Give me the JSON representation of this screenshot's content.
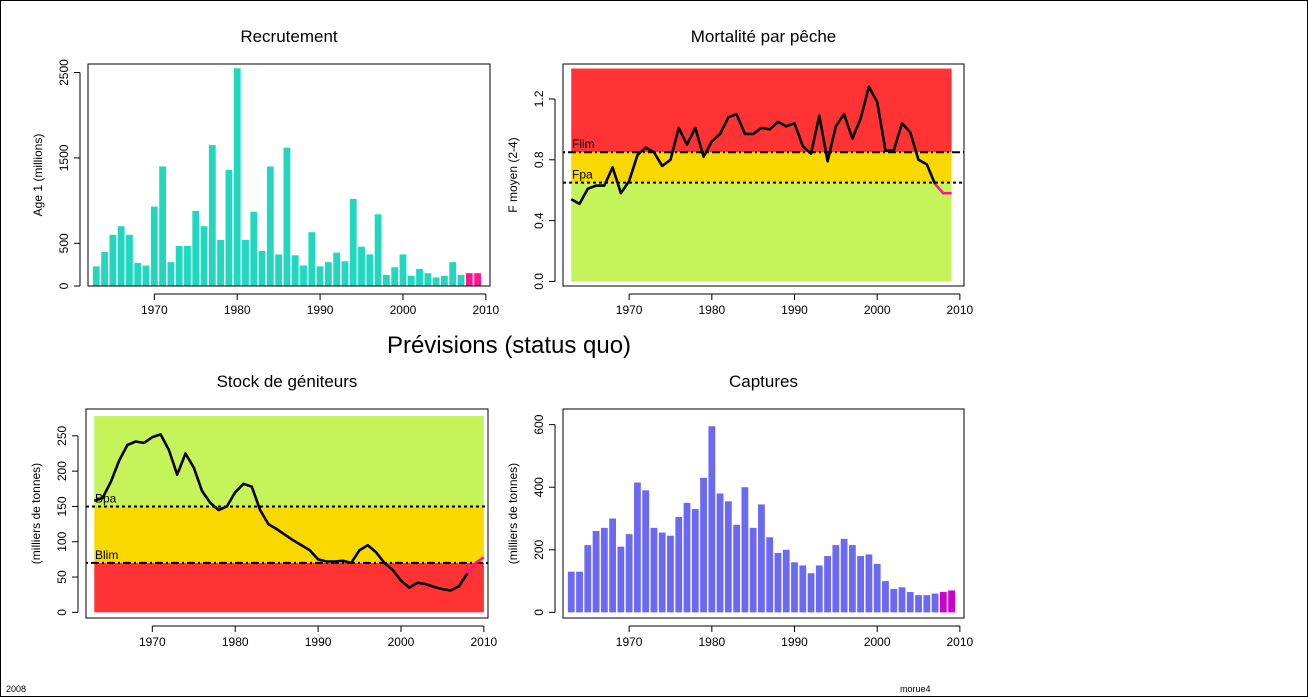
{
  "page": {
    "main_title": "Prévisions (status quo)",
    "footer_left": "2008",
    "footer_right": "morue4"
  },
  "colors": {
    "recruit_bar": "#20D8C0",
    "forecast": "#FF1493",
    "catch_bar": "#6B68F4",
    "catch_forecast_bar": "#CC00CC",
    "zone_red": "#FF3333",
    "zone_yellow": "#F9D800",
    "zone_green": "#C4F45A"
  },
  "chart_data": [
    {
      "id": "recruitment",
      "type": "bar",
      "title": "Recrutement",
      "xlabel": "",
      "ylabel": "Age 1 (millions)",
      "xlim": [
        1962,
        2010.5
      ],
      "ylim": [
        0,
        2600
      ],
      "xticks": [
        1970,
        1980,
        1990,
        2000,
        2010
      ],
      "yticks": [
        0,
        500,
        1500,
        2500
      ],
      "x": [
        1963,
        1964,
        1965,
        1966,
        1967,
        1968,
        1969,
        1970,
        1971,
        1972,
        1973,
        1974,
        1975,
        1976,
        1977,
        1978,
        1979,
        1980,
        1981,
        1982,
        1983,
        1984,
        1985,
        1986,
        1987,
        1988,
        1989,
        1990,
        1991,
        1992,
        1993,
        1994,
        1995,
        1996,
        1997,
        1998,
        1999,
        2000,
        2001,
        2002,
        2003,
        2004,
        2005,
        2006,
        2007,
        2008,
        2009
      ],
      "values": [
        230,
        400,
        600,
        700,
        600,
        270,
        240,
        930,
        1400,
        280,
        470,
        470,
        880,
        700,
        1650,
        540,
        1360,
        2550,
        540,
        870,
        410,
        1400,
        370,
        1620,
        360,
        240,
        630,
        230,
        280,
        390,
        290,
        1020,
        460,
        370,
        840,
        130,
        220,
        370,
        120,
        200,
        150,
        100,
        120,
        280,
        130,
        150,
        150
      ],
      "forecast_from": 2008
    },
    {
      "id": "fishing-mortality",
      "type": "line",
      "title": "Mortalité par pêche",
      "xlabel": "",
      "ylabel": "F moyen (2-4)",
      "xlim": [
        1962,
        2010.5
      ],
      "ylim": [
        -0.03,
        1.43
      ],
      "xticks": [
        1970,
        1980,
        1990,
        2000,
        2010
      ],
      "yticks": [
        0.0,
        0.4,
        0.8,
        1.2
      ],
      "ytick_labels": [
        "0.0",
        "0.4",
        "0.8",
        "1.2"
      ],
      "zones": [
        {
          "from": 0.0,
          "to": 0.65,
          "color": "zone_green"
        },
        {
          "from": 0.65,
          "to": 0.85,
          "color": "zone_yellow"
        },
        {
          "from": 0.85,
          "to": 1.4,
          "color": "zone_red"
        }
      ],
      "zones_x": [
        1963,
        2009
      ],
      "reference_lines": [
        {
          "label": "Flim",
          "value": 0.85,
          "style": "dotdash"
        },
        {
          "label": "Fpa",
          "value": 0.65,
          "style": "dotted"
        }
      ],
      "x": [
        1963,
        1964,
        1965,
        1966,
        1967,
        1968,
        1969,
        1970,
        1971,
        1972,
        1973,
        1974,
        1975,
        1976,
        1977,
        1978,
        1979,
        1980,
        1981,
        1982,
        1983,
        1984,
        1985,
        1986,
        1987,
        1988,
        1989,
        1990,
        1991,
        1992,
        1993,
        1994,
        1995,
        1996,
        1997,
        1998,
        1999,
        2000,
        2001,
        2002,
        2003,
        2004,
        2005,
        2006,
        2007,
        2008,
        2009
      ],
      "values": [
        0.54,
        0.51,
        0.61,
        0.63,
        0.63,
        0.75,
        0.58,
        0.66,
        0.83,
        0.88,
        0.85,
        0.76,
        0.8,
        1.01,
        0.9,
        1.01,
        0.82,
        0.92,
        0.97,
        1.08,
        1.1,
        0.97,
        0.97,
        1.01,
        1.0,
        1.05,
        1.02,
        1.04,
        0.89,
        0.84,
        1.09,
        0.79,
        1.02,
        1.1,
        0.94,
        1.07,
        1.28,
        1.18,
        0.86,
        0.86,
        1.04,
        0.98,
        0.8,
        0.77,
        0.64,
        0.58,
        0.58
      ],
      "forecast_from": 2007
    },
    {
      "id": "spawning-stock",
      "type": "line",
      "title": "Stock de géniteurs",
      "xlabel": "",
      "ylabel": "(milliers de tonnes)",
      "xlim": [
        1962,
        2010.5
      ],
      "ylim": [
        -8,
        288
      ],
      "xticks": [
        1970,
        1980,
        1990,
        2000,
        2010
      ],
      "yticks": [
        0,
        50,
        100,
        150,
        200,
        250
      ],
      "zones": [
        {
          "from": 0,
          "to": 70,
          "color": "zone_red"
        },
        {
          "from": 70,
          "to": 150,
          "color": "zone_yellow"
        },
        {
          "from": 150,
          "to": 278,
          "color": "zone_green"
        }
      ],
      "zones_x": [
        1963,
        2010
      ],
      "reference_lines": [
        {
          "label": "Bpa",
          "value": 150,
          "style": "dotted"
        },
        {
          "label": "Blim",
          "value": 70,
          "style": "dotdash"
        }
      ],
      "x": [
        1963,
        1964,
        1965,
        1966,
        1967,
        1968,
        1969,
        1970,
        1971,
        1972,
        1973,
        1974,
        1975,
        1976,
        1977,
        1978,
        1979,
        1980,
        1981,
        1982,
        1983,
        1984,
        1985,
        1986,
        1987,
        1988,
        1989,
        1990,
        1991,
        1992,
        1993,
        1994,
        1995,
        1996,
        1997,
        1998,
        1999,
        2000,
        2001,
        2002,
        2003,
        2004,
        2005,
        2006,
        2007,
        2008,
        2009,
        2010
      ],
      "values": [
        158,
        162,
        185,
        215,
        237,
        242,
        240,
        248,
        252,
        230,
        195,
        225,
        205,
        172,
        155,
        145,
        150,
        170,
        182,
        178,
        145,
        125,
        118,
        110,
        102,
        95,
        88,
        75,
        72,
        72,
        73,
        70,
        88,
        95,
        85,
        70,
        60,
        45,
        35,
        42,
        40,
        36,
        33,
        31,
        37,
        55,
        70,
        78
      ],
      "forecast_from": 2008
    },
    {
      "id": "catches",
      "type": "bar",
      "title": "Captures",
      "xlabel": "",
      "ylabel": "(milliers de tonnes)",
      "xlim": [
        1962,
        2010.5
      ],
      "ylim": [
        -18,
        650
      ],
      "xticks": [
        1970,
        1980,
        1990,
        2000,
        2010
      ],
      "yticks": [
        0,
        200,
        400,
        600
      ],
      "x": [
        1963,
        1964,
        1965,
        1966,
        1967,
        1968,
        1969,
        1970,
        1971,
        1972,
        1973,
        1974,
        1975,
        1976,
        1977,
        1978,
        1979,
        1980,
        1981,
        1982,
        1983,
        1984,
        1985,
        1986,
        1987,
        1988,
        1989,
        1990,
        1991,
        1992,
        1993,
        1994,
        1995,
        1996,
        1997,
        1998,
        1999,
        2000,
        2001,
        2002,
        2003,
        2004,
        2005,
        2006,
        2007,
        2008,
        2009
      ],
      "values": [
        130,
        130,
        215,
        260,
        270,
        300,
        210,
        250,
        415,
        390,
        270,
        255,
        245,
        305,
        350,
        330,
        430,
        595,
        380,
        355,
        280,
        400,
        270,
        345,
        240,
        190,
        200,
        160,
        150,
        125,
        150,
        180,
        215,
        235,
        215,
        180,
        185,
        155,
        100,
        75,
        80,
        65,
        55,
        55,
        60,
        65,
        70
      ],
      "forecast_from": 2008
    }
  ]
}
